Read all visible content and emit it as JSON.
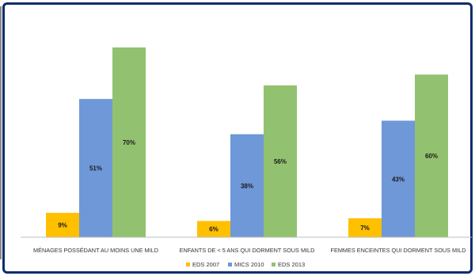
{
  "chart_data": {
    "type": "bar",
    "title": "",
    "xlabel": "",
    "ylabel": "",
    "ylim": [
      0,
      80
    ],
    "grid": false,
    "legend_position": "bottom",
    "categories": [
      "MÉNAGES POSSÉDANT AU MOINS UNE MILD",
      "ENFANTS DE < 5 ANS QUI DORMENT SOUS MILD",
      "FEMMES ENCEINTES QUI DORMENT SOUS MILD"
    ],
    "series": [
      {
        "name": "EDS 2007",
        "color": "#ffc000",
        "values": [
          9,
          6,
          7
        ],
        "labels": [
          "9%",
          "6%",
          "7%"
        ]
      },
      {
        "name": "MICS 2010",
        "color": "#6f98d8",
        "values": [
          51,
          38,
          43
        ],
        "labels": [
          "51%",
          "38%",
          "43%"
        ]
      },
      {
        "name": "EDS 2013",
        "color": "#92c26f",
        "values": [
          70,
          56,
          60
        ],
        "labels": [
          "70%",
          "56%",
          "60%"
        ]
      }
    ]
  }
}
